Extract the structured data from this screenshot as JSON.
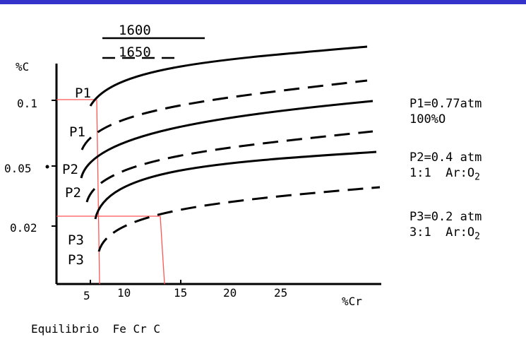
{
  "header": {
    "accent_color": "#3333cc"
  },
  "chart_data": {
    "type": "line",
    "ylabel": "%C",
    "xlabel": "%Cr",
    "x_ticks": [
      "5",
      "10",
      "15",
      "20",
      "25"
    ],
    "y_ticks": [
      "0.1",
      "0.05",
      "0.02"
    ],
    "legend": [
      {
        "label": "1600",
        "style": "solid"
      },
      {
        "label": "1650",
        "style": "dashed"
      }
    ],
    "series": [
      {
        "name": "P1",
        "style": "solid",
        "points": [
          [
            6,
            0.11
          ],
          [
            10,
            0.125
          ],
          [
            15,
            0.135
          ],
          [
            20,
            0.14
          ],
          [
            25,
            0.145
          ],
          [
            30,
            0.15
          ]
        ]
      },
      {
        "name": "P1",
        "style": "dashed",
        "points": [
          [
            4.5,
            0.075
          ],
          [
            10,
            0.105
          ],
          [
            15,
            0.115
          ],
          [
            20,
            0.12
          ],
          [
            25,
            0.125
          ],
          [
            30,
            0.13
          ]
        ]
      },
      {
        "name": "P2",
        "style": "solid",
        "points": [
          [
            4.5,
            0.055
          ],
          [
            10,
            0.085
          ],
          [
            15,
            0.092
          ],
          [
            20,
            0.097
          ],
          [
            25,
            0.1
          ],
          [
            30,
            0.105
          ]
        ]
      },
      {
        "name": "P2",
        "style": "dashed",
        "points": [
          [
            5,
            0.035
          ],
          [
            10,
            0.065
          ],
          [
            15,
            0.073
          ],
          [
            20,
            0.078
          ],
          [
            25,
            0.081
          ],
          [
            30,
            0.085
          ]
        ]
      },
      {
        "name": "P3",
        "style": "solid",
        "points": [
          [
            6,
            0.025
          ],
          [
            10,
            0.045
          ],
          [
            15,
            0.052
          ],
          [
            20,
            0.056
          ],
          [
            25,
            0.059
          ],
          [
            30,
            0.063
          ]
        ]
      },
      {
        "name": "P3",
        "style": "dashed",
        "points": [
          [
            6,
            0.01
          ],
          [
            10,
            0.02
          ],
          [
            15,
            0.027
          ],
          [
            20,
            0.031
          ],
          [
            25,
            0.034
          ],
          [
            30,
            0.038
          ]
        ]
      }
    ],
    "curve_labels": [
      "P1",
      "P1",
      "P2",
      "P2",
      "P3",
      "P3"
    ],
    "guide_color": "#ff5555"
  },
  "notes": [
    {
      "line1": "P1=0.77atm",
      "line2_text": "100%O",
      "line2_sub": ""
    },
    {
      "line1": "P2=0.4 atm",
      "line2_text": "1:1  Ar:O",
      "line2_sub": "2"
    },
    {
      "line1": "P3=0.2 atm",
      "line2_text": "3:1  Ar:O",
      "line2_sub": "2"
    }
  ],
  "caption": "Equilibrio  Fe Cr C"
}
